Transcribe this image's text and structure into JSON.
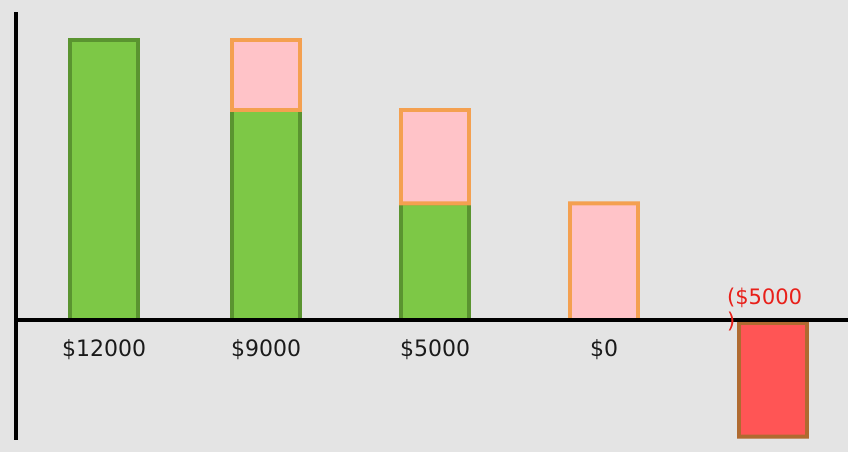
{
  "chart_data": {
    "type": "bar",
    "categories": [
      "$12000",
      "$9000",
      "$5000",
      "$0",
      "($5000)"
    ],
    "series": [
      {
        "values": [
          12000,
          9000,
          5000,
          0,
          -5000
        ]
      },
      {
        "values": [
          0,
          3000,
          4000,
          5000,
          0
        ]
      }
    ],
    "ylim": [
      -5000,
      12000
    ],
    "grid": false,
    "legend": "none",
    "colors": {
      "remaining_fill": "#7dc846",
      "remaining_stroke": "#5a9430",
      "decrement_fill": "#ffc3c8",
      "decrement_stroke": "#f4a050",
      "negative_fill": "#ff5555",
      "negative_stroke": "#b06a30",
      "negative_label": "#e8201a",
      "axis": "#000000",
      "background": "#e4e4e4"
    }
  }
}
